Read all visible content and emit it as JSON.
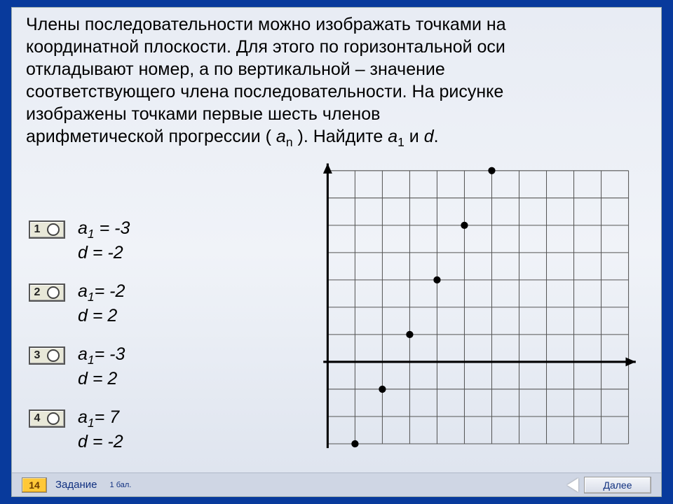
{
  "question": {
    "line1": "Члены последовательности можно изображать точками на",
    "line2": "координатной плоскости. Для этого по горизонтальной оси",
    "line3": "откладывают номер, а по вертикальной – значение",
    "line4": "соответствующего члена последовательности. На рисунке",
    "line5": "изображены точками первые шесть членов",
    "line6_a": "арифметической прогрессии ( ",
    "line6_an": "a",
    "line6_sub": "n",
    "line6_b": " ). Найдите ",
    "line6_a1": "a",
    "line6_sub1": "1",
    "line6_c": " и ",
    "line6_d": "d",
    "line6_e": "."
  },
  "options": [
    {
      "num": "1",
      "l1a": "a",
      "l1s": "1",
      "l1b": " = -3",
      "l2": "d = -2"
    },
    {
      "num": "2",
      "l1a": "a",
      "l1s": "1",
      "l1b": "= -2",
      "l2": "d = 2"
    },
    {
      "num": "3",
      "l1a": "a",
      "l1s": "1",
      "l1b": "= -3",
      "l2": "d = 2"
    },
    {
      "num": "4",
      "l1a": "a",
      "l1s": "1",
      "l1b": "= 7",
      "l2": "d = -2"
    }
  ],
  "chart": {
    "cell": 38,
    "cols": 11,
    "rows": 10,
    "origin_col": 0,
    "origin_row": 7,
    "grid_color": "#555555",
    "bg_color": "transparent",
    "axis_color": "#000000",
    "axis_width": 3,
    "point_color": "#000000",
    "point_radius": 5,
    "arrow_size": 14,
    "points": [
      {
        "x": 1,
        "y": -3
      },
      {
        "x": 2,
        "y": -1
      },
      {
        "x": 3,
        "y": 1
      },
      {
        "x": 4,
        "y": 3
      },
      {
        "x": 5,
        "y": 5
      },
      {
        "x": 6,
        "y": 7
      }
    ]
  },
  "footer": {
    "num": "14",
    "task": "Задание",
    "points": "1 бал.",
    "next": "Далее"
  }
}
